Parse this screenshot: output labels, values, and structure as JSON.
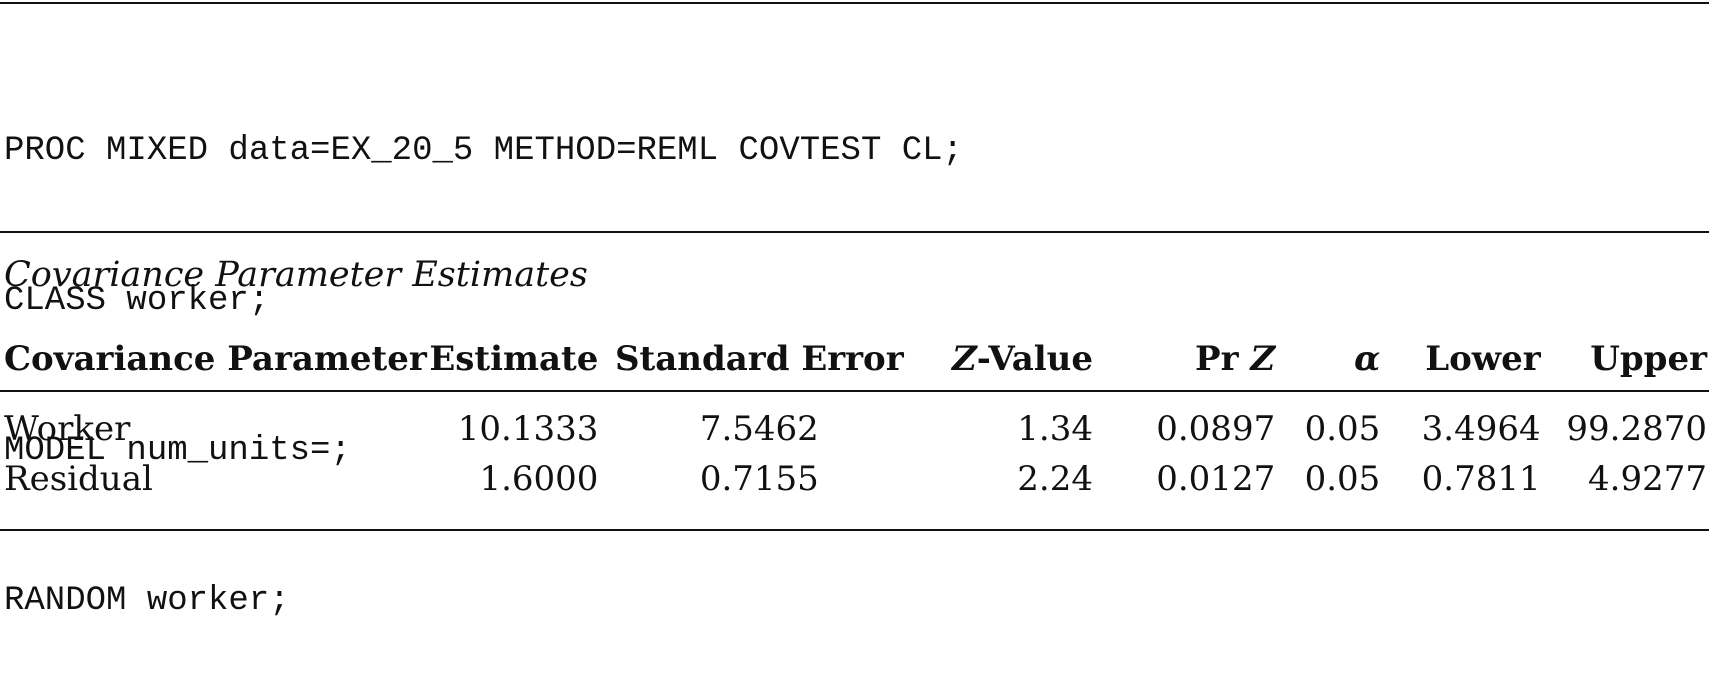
{
  "code": {
    "lines": [
      "PROC MIXED data=EX_20_5 METHOD=REML COVTEST CL;",
      "CLASS worker;",
      "MODEL num_units=;",
      "RANDOM worker;"
    ]
  },
  "caption": "Covariance Parameter Estimates",
  "table": {
    "headers": {
      "param": "Covariance Parameter",
      "estimate": "Estimate",
      "std_error": "Standard Error",
      "z_value_italic": "Z",
      "z_value_rest": "-Value",
      "prz_prefix": "Pr ",
      "prz_italic": "Z",
      "alpha": "α",
      "lower": "Lower",
      "upper": "Upper"
    },
    "rows": [
      {
        "param": "Worker",
        "estimate": "10.1333",
        "std_error": "7.5462",
        "z_value": "1.34",
        "prz": "0.0897",
        "alpha": "0.05",
        "lower": "3.4964",
        "upper": "99.2870"
      },
      {
        "param": "Residual",
        "estimate": "1.6000",
        "std_error": "0.7155",
        "z_value": "2.24",
        "prz": "0.0127",
        "alpha": "0.05",
        "lower": "0.7811",
        "upper": "4.9277"
      }
    ]
  }
}
